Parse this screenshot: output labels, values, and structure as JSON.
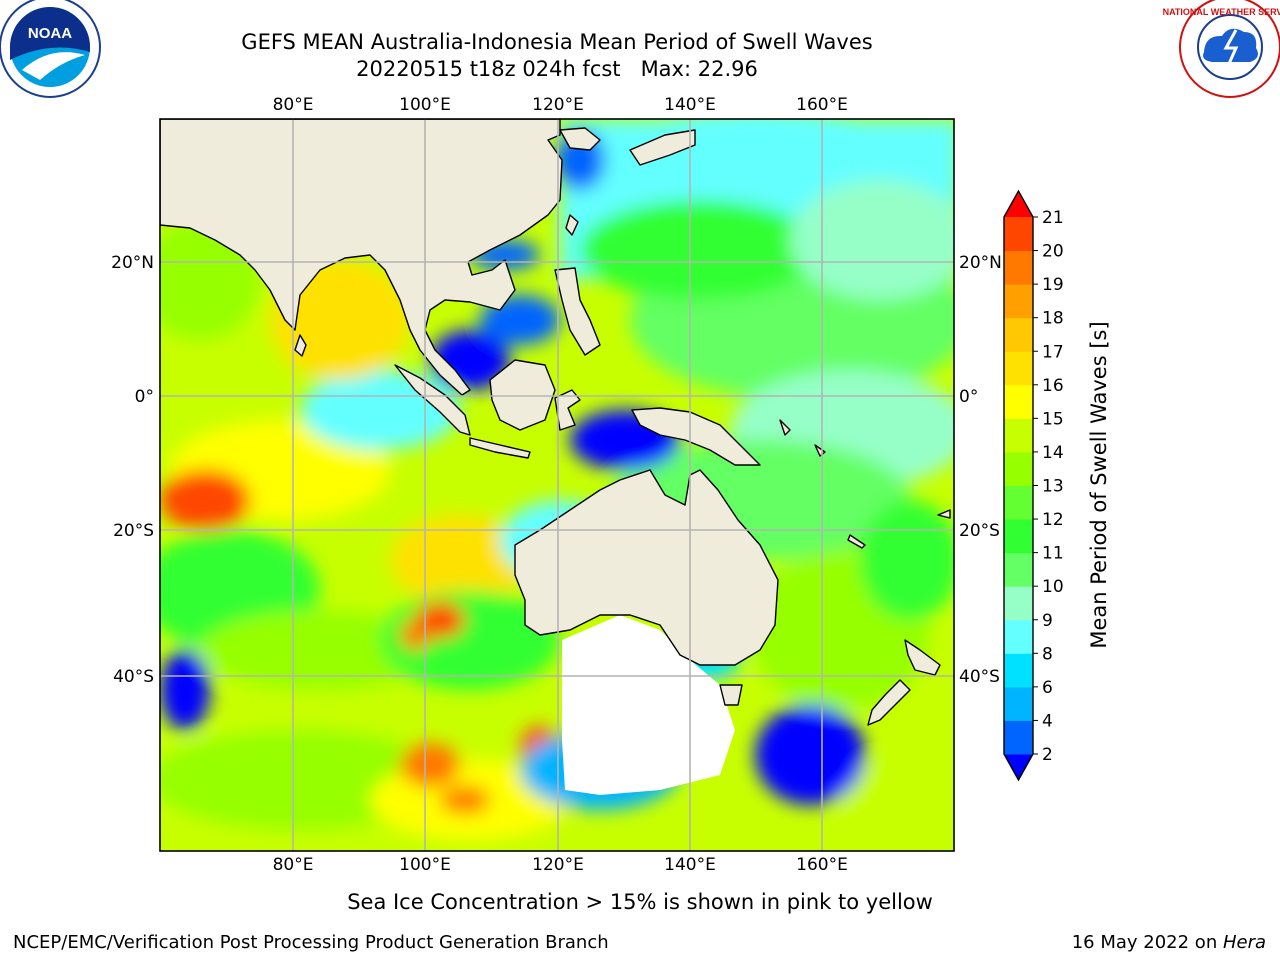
{
  "title": {
    "line1": "GEFS MEAN Australia-Indonesia Mean Period of Swell Waves",
    "line2": "20220515 t18z 024h fcst   Max: 22.96"
  },
  "axes": {
    "lon_ticks_top": [
      "80°E",
      "100°E",
      "120°E",
      "140°E",
      "160°E"
    ],
    "lon_ticks_bottom": [
      "80°E",
      "100°E",
      "120°E",
      "140°E",
      "160°E"
    ],
    "lat_ticks_left": [
      "20°N",
      "0°",
      "20°S",
      "40°S"
    ],
    "lat_ticks_right": [
      "20°N",
      "0°",
      "20°S",
      "40°S"
    ]
  },
  "colorbar": {
    "label": "Mean Period of Swell Waves [s]",
    "ticks": [
      "2",
      "4",
      "6",
      "8",
      "9",
      "10",
      "11",
      "12",
      "13",
      "14",
      "15",
      "16",
      "17",
      "18",
      "19",
      "20",
      "21"
    ],
    "colors": [
      "#0000ff",
      "#0064ff",
      "#00b4ff",
      "#00e1ff",
      "#64ffff",
      "#96ffc8",
      "#64ff64",
      "#32ff32",
      "#64ff32",
      "#96ff00",
      "#c8ff00",
      "#ffff00",
      "#ffe100",
      "#ffc800",
      "#ffa000",
      "#ff7800",
      "#ff4600",
      "#ff0000"
    ]
  },
  "map_colors": {
    "land": "#efecdc",
    "ice": "#ffffff",
    "grid": "#b4b4b4",
    "coast": "#000000"
  },
  "logos": {
    "noaa_text": "NOAA",
    "nws_text": "NATIONAL WEATHER SERVICE"
  },
  "footnote": "Sea Ice Concentration > 15% is shown in pink to yellow",
  "credit_left": "NCEP/EMC/Verification Post Processing Product Generation Branch",
  "credit_right_prefix": "16 May 2022 on ",
  "credit_right_host": "Hera"
}
